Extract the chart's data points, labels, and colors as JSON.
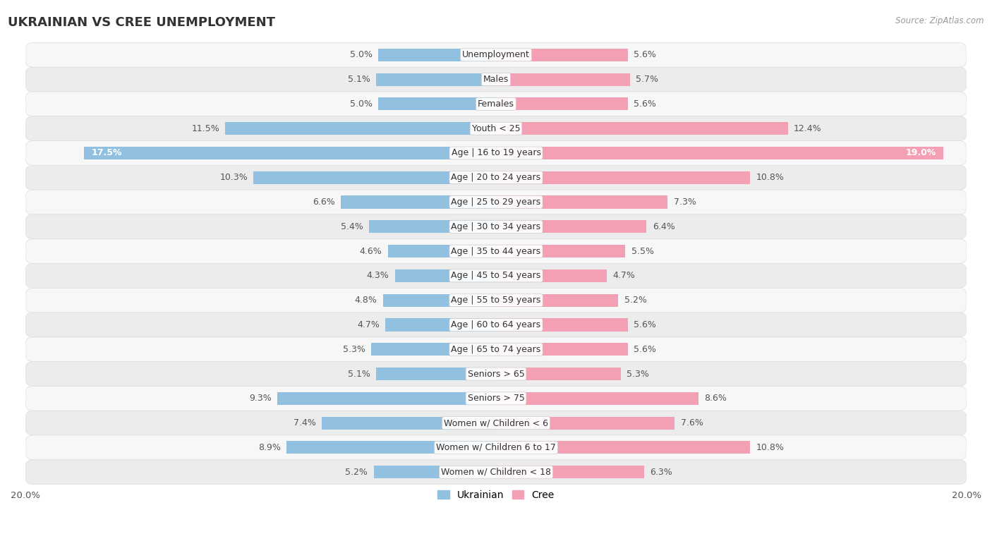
{
  "title": "UKRAINIAN VS CREE UNEMPLOYMENT",
  "source": "Source: ZipAtlas.com",
  "categories": [
    "Unemployment",
    "Males",
    "Females",
    "Youth < 25",
    "Age | 16 to 19 years",
    "Age | 20 to 24 years",
    "Age | 25 to 29 years",
    "Age | 30 to 34 years",
    "Age | 35 to 44 years",
    "Age | 45 to 54 years",
    "Age | 55 to 59 years",
    "Age | 60 to 64 years",
    "Age | 65 to 74 years",
    "Seniors > 65",
    "Seniors > 75",
    "Women w/ Children < 6",
    "Women w/ Children 6 to 17",
    "Women w/ Children < 18"
  ],
  "ukrainian": [
    5.0,
    5.1,
    5.0,
    11.5,
    17.5,
    10.3,
    6.6,
    5.4,
    4.6,
    4.3,
    4.8,
    4.7,
    5.3,
    5.1,
    9.3,
    7.4,
    8.9,
    5.2
  ],
  "cree": [
    5.6,
    5.7,
    5.6,
    12.4,
    19.0,
    10.8,
    7.3,
    6.4,
    5.5,
    4.7,
    5.2,
    5.6,
    5.6,
    5.3,
    8.6,
    7.6,
    10.8,
    6.3
  ],
  "ukrainian_color": "#92C0E0",
  "cree_color": "#F4A0B4",
  "row_bg_even": "#f7f7f7",
  "row_bg_odd": "#ececec",
  "x_max": 20.0,
  "bar_height": 0.52,
  "label_fontsize": 9.0,
  "cat_fontsize": 9.0,
  "title_fontsize": 13,
  "legend_fontsize": 10,
  "value_color": "#555555",
  "value_color_white": "#ffffff"
}
